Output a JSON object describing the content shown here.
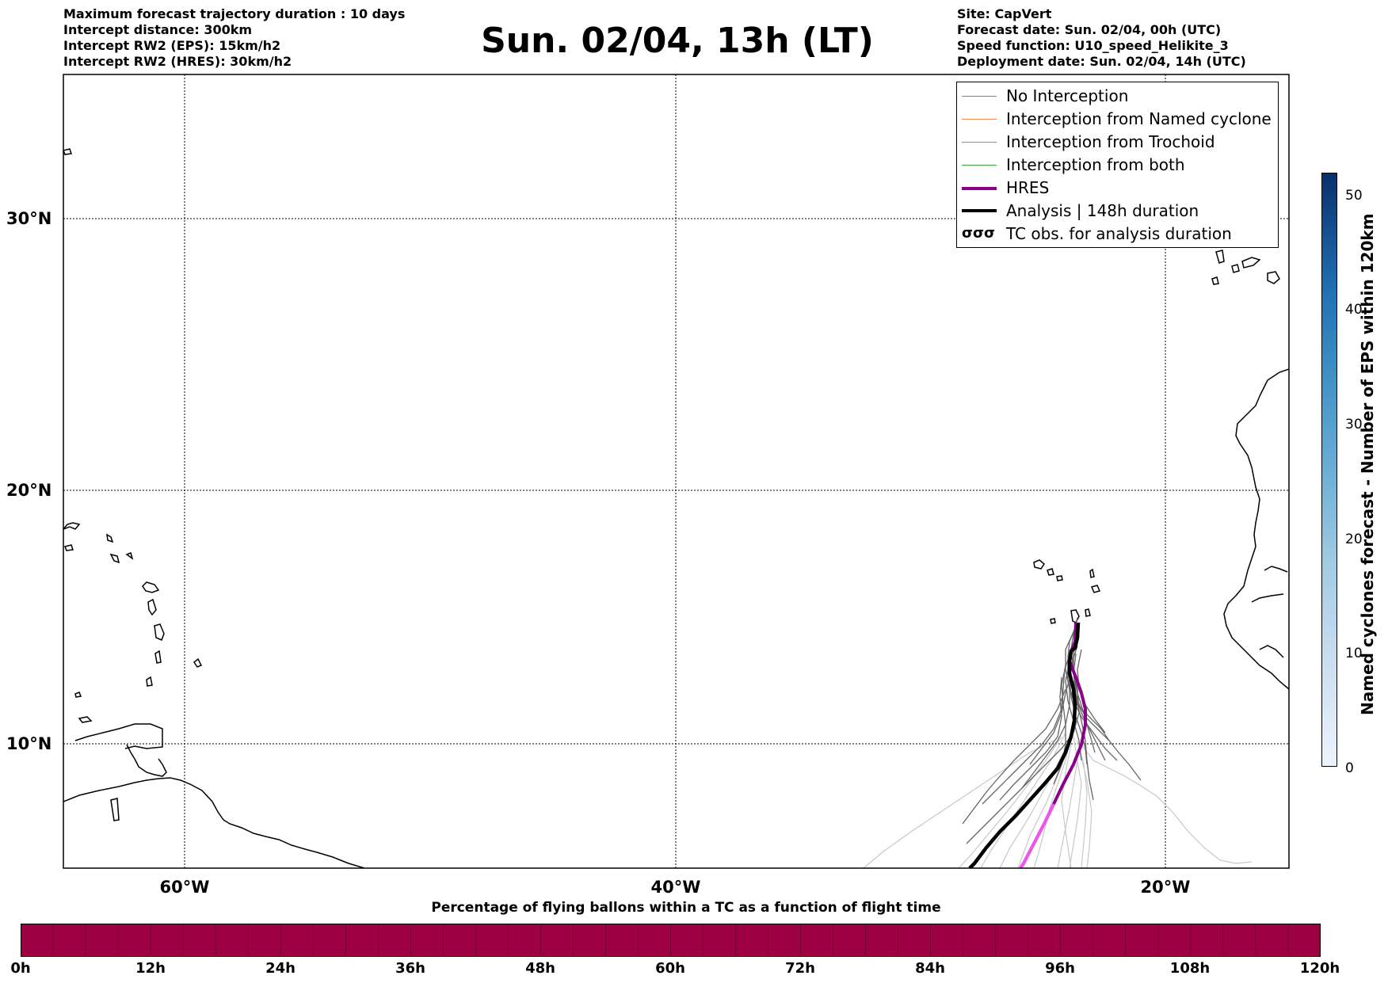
{
  "header": {
    "left_lines": [
      "Maximum forecast trajectory duration : 10 days",
      "Intercept distance: 300km",
      "Intercept RW2 (EPS):  15km/h2",
      "Intercept RW2 (HRES): 30km/h2"
    ],
    "title": "Sun. 02/04, 13h (LT)",
    "right_lines": [
      "Site: CapVert",
      "Forecast date: Sun. 02/04, 00h (UTC)",
      "Speed function: U10_speed_Helikite_3",
      "Deployment date: Sun. 02/04, 14h (UTC)"
    ]
  },
  "map": {
    "lat_labels": [
      "30°N",
      "20°N",
      "10°N"
    ],
    "lon_labels": [
      "60°W",
      "40°W",
      "20°W"
    ]
  },
  "legend": {
    "items": [
      {
        "label": "No Interception",
        "color": "#808080"
      },
      {
        "label": "Interception from Named cyclone",
        "color": "#f4874b"
      },
      {
        "label": "Interception from Trochoid",
        "color": "#9c9640"
      },
      {
        "label": "Interception from both",
        "color": "#3aa33a"
      },
      {
        "label": "HRES",
        "color": "#8b008b"
      },
      {
        "label": "Analysis | 148h duration",
        "color": "#000000"
      },
      {
        "label": "TC obs. for analysis duration",
        "glyph": "σσσ"
      }
    ]
  },
  "cyclone_colorbar": {
    "label": "Named cyclones forecast - Number of EPS within 120km",
    "ticks": [
      "50",
      "40",
      "30",
      "20",
      "10",
      "0"
    ]
  },
  "flight_colorbar": {
    "title": "Percentage of flying ballons within a TC as a function of flight time",
    "ticks": [
      "0h",
      "12h",
      "24h",
      "36h",
      "48h",
      "60h",
      "72h",
      "84h",
      "96h",
      "108h",
      "120h"
    ],
    "fill_color": "#9e0142"
  }
}
